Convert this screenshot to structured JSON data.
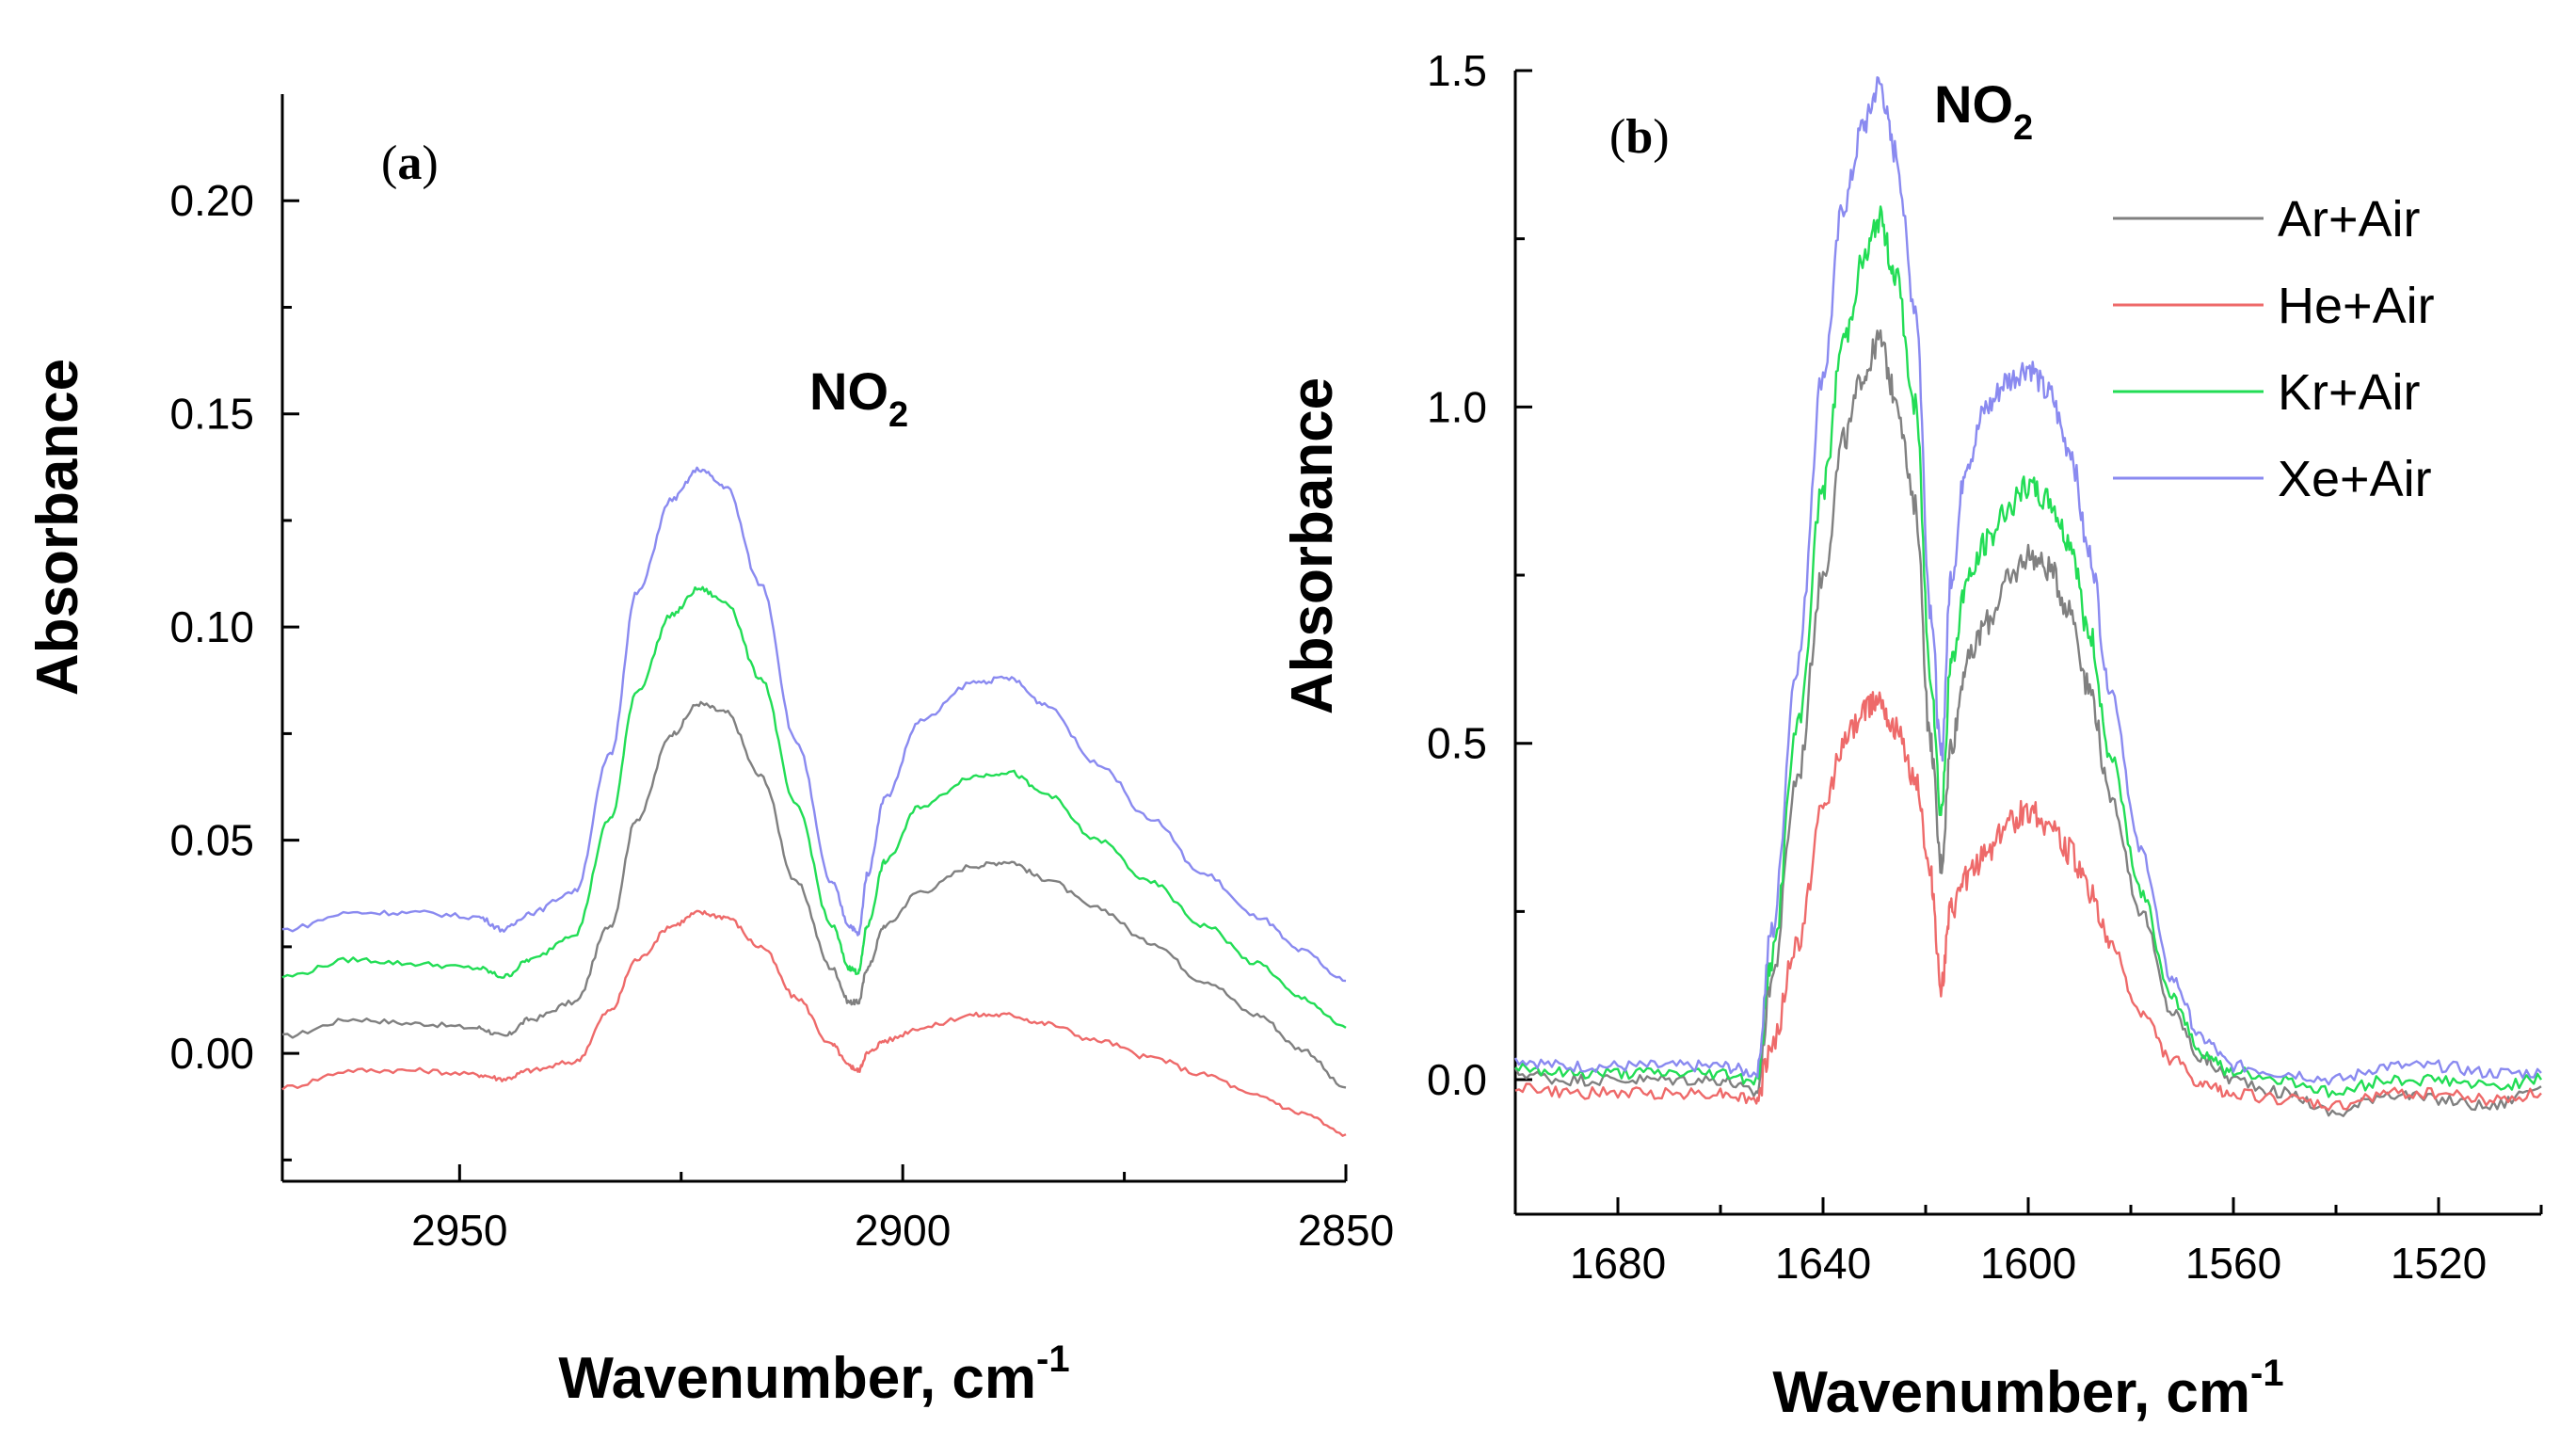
{
  "chart_data": [
    {
      "type": "line",
      "panel_label": "a",
      "annotation": {
        "text": "NO",
        "subscript": "2"
      },
      "xlabel": "Wavenumber, cm",
      "xlabel_superscript": "-1",
      "ylabel": "Absorbance",
      "xlim": [
        2970,
        2850
      ],
      "ylim": [
        -0.03,
        0.225
      ],
      "x_ticks": [
        2950,
        2900,
        2850
      ],
      "x_tick_labels": [
        "2950",
        "2900",
        "2850"
      ],
      "y_ticks": [
        0.0,
        0.05,
        0.1,
        0.15,
        0.2
      ],
      "y_tick_labels": [
        "0.00",
        "0.05",
        "0.10",
        "0.15",
        "0.20"
      ],
      "series": [
        {
          "name": "Ar+Air",
          "color": "#808080",
          "x": [
            2970,
            2962,
            2955,
            2948,
            2945,
            2942,
            2937,
            2933,
            2930,
            2926,
            2923,
            2920,
            2916,
            2912,
            2908,
            2906,
            2905,
            2904,
            2902,
            2898,
            2892,
            2888,
            2884,
            2878,
            2872,
            2866,
            2860,
            2855,
            2850
          ],
          "y": [
            0.004,
            0.008,
            0.007,
            0.006,
            0.004,
            0.008,
            0.012,
            0.03,
            0.055,
            0.075,
            0.082,
            0.08,
            0.065,
            0.04,
            0.02,
            0.012,
            0.012,
            0.02,
            0.03,
            0.038,
            0.044,
            0.045,
            0.041,
            0.034,
            0.026,
            0.017,
            0.009,
            0.001,
            -0.008
          ]
        },
        {
          "name": "He+Air",
          "color": "#ee6a6a",
          "x": [
            2970,
            2962,
            2955,
            2948,
            2945,
            2942,
            2937,
            2933,
            2930,
            2926,
            2923,
            2920,
            2916,
            2912,
            2908,
            2906,
            2905,
            2904,
            2902,
            2898,
            2892,
            2888,
            2884,
            2878,
            2872,
            2866,
            2860,
            2855,
            2850
          ],
          "y": [
            -0.008,
            -0.004,
            -0.004,
            -0.005,
            -0.006,
            -0.004,
            -0.002,
            0.01,
            0.022,
            0.03,
            0.033,
            0.032,
            0.025,
            0.013,
            0.002,
            -0.003,
            -0.004,
            0.0,
            0.003,
            0.006,
            0.009,
            0.009,
            0.007,
            0.003,
            -0.001,
            -0.005,
            -0.01,
            -0.014,
            -0.019
          ]
        },
        {
          "name": "Kr+Air",
          "color": "#22dd55",
          "x": [
            2970,
            2962,
            2955,
            2948,
            2945,
            2942,
            2937,
            2933,
            2930,
            2926,
            2923,
            2920,
            2916,
            2912,
            2908,
            2906,
            2905,
            2904,
            2902,
            2898,
            2892,
            2888,
            2884,
            2878,
            2872,
            2866,
            2860,
            2855,
            2850
          ],
          "y": [
            0.018,
            0.022,
            0.021,
            0.02,
            0.018,
            0.022,
            0.028,
            0.055,
            0.085,
            0.103,
            0.109,
            0.106,
            0.088,
            0.058,
            0.03,
            0.02,
            0.019,
            0.03,
            0.045,
            0.058,
            0.065,
            0.066,
            0.061,
            0.05,
            0.04,
            0.03,
            0.021,
            0.013,
            0.006
          ]
        },
        {
          "name": "Xe+Air",
          "color": "#8a8af0",
          "x": [
            2970,
            2962,
            2955,
            2948,
            2945,
            2942,
            2937,
            2933,
            2930,
            2926,
            2923,
            2920,
            2916,
            2912,
            2908,
            2906,
            2905,
            2904,
            2902,
            2898,
            2892,
            2888,
            2884,
            2878,
            2872,
            2866,
            2860,
            2855,
            2850
          ],
          "y": [
            0.029,
            0.033,
            0.033,
            0.032,
            0.029,
            0.033,
            0.038,
            0.07,
            0.108,
            0.13,
            0.137,
            0.133,
            0.11,
            0.073,
            0.04,
            0.03,
            0.028,
            0.042,
            0.06,
            0.078,
            0.087,
            0.088,
            0.082,
            0.068,
            0.055,
            0.042,
            0.032,
            0.024,
            0.017
          ]
        }
      ]
    },
    {
      "type": "line",
      "panel_label": "b",
      "annotation": {
        "text": "NO",
        "subscript": "2"
      },
      "xlabel": "Wavenumber, cm",
      "xlabel_superscript": "-1",
      "ylabel": "Absorbance",
      "xlim": [
        1700,
        1500
      ],
      "ylim": [
        -0.2,
        1.5
      ],
      "x_ticks": [
        1680,
        1640,
        1600,
        1560,
        1520
      ],
      "x_tick_labels": [
        "1680",
        "1640",
        "1600",
        "1560",
        "1520"
      ],
      "y_ticks": [
        0.0,
        0.5,
        1.0,
        1.5
      ],
      "y_tick_labels": [
        "0.0",
        "0.5",
        "1.0",
        "1.5"
      ],
      "legend": [
        "Ar+Air",
        "He+Air",
        "Kr+Air",
        "Xe+Air"
      ],
      "series": [
        {
          "name": "Ar+Air",
          "color": "#808080",
          "x": [
            1700,
            1690,
            1680,
            1670,
            1660,
            1653,
            1650,
            1645,
            1640,
            1636,
            1632,
            1629,
            1626,
            1622,
            1619,
            1617,
            1615,
            1612,
            1608,
            1604,
            1600,
            1596,
            1592,
            1588,
            1584,
            1578,
            1572,
            1566,
            1560,
            1550,
            1540,
            1530,
            1520,
            1510,
            1500
          ],
          "y": [
            0.01,
            0.0,
            0.0,
            0.0,
            0.0,
            -0.02,
            0.15,
            0.45,
            0.75,
            0.95,
            1.05,
            1.1,
            1.02,
            0.85,
            0.5,
            0.32,
            0.5,
            0.62,
            0.68,
            0.74,
            0.78,
            0.76,
            0.7,
            0.58,
            0.42,
            0.25,
            0.1,
            0.03,
            0.0,
            -0.02,
            -0.05,
            -0.02,
            -0.03,
            -0.04,
            -0.01
          ]
        },
        {
          "name": "He+Air",
          "color": "#ee6a6a",
          "x": [
            1700,
            1690,
            1680,
            1670,
            1660,
            1653,
            1650,
            1645,
            1640,
            1636,
            1632,
            1629,
            1626,
            1622,
            1619,
            1617,
            1615,
            1612,
            1608,
            1604,
            1600,
            1596,
            1592,
            1588,
            1584,
            1578,
            1572,
            1566,
            1560,
            1550,
            1540,
            1530,
            1520,
            1510,
            1500
          ],
          "y": [
            -0.01,
            -0.02,
            -0.02,
            -0.02,
            -0.02,
            -0.03,
            0.05,
            0.2,
            0.4,
            0.5,
            0.55,
            0.57,
            0.52,
            0.45,
            0.3,
            0.14,
            0.25,
            0.3,
            0.34,
            0.38,
            0.4,
            0.38,
            0.34,
            0.28,
            0.2,
            0.1,
            0.03,
            -0.01,
            -0.02,
            -0.03,
            -0.04,
            -0.02,
            -0.02,
            -0.03,
            -0.02
          ]
        },
        {
          "name": "Kr+Air",
          "color": "#22dd55",
          "x": [
            1700,
            1690,
            1680,
            1670,
            1660,
            1653,
            1650,
            1645,
            1640,
            1636,
            1632,
            1629,
            1626,
            1622,
            1619,
            1617,
            1615,
            1612,
            1608,
            1604,
            1600,
            1596,
            1592,
            1588,
            1584,
            1578,
            1572,
            1566,
            1560,
            1550,
            1540,
            1530,
            1520,
            1510,
            1500
          ],
          "y": [
            0.02,
            0.01,
            0.01,
            0.01,
            0.01,
            0.0,
            0.18,
            0.52,
            0.88,
            1.1,
            1.22,
            1.28,
            1.2,
            1.0,
            0.6,
            0.4,
            0.62,
            0.74,
            0.8,
            0.85,
            0.88,
            0.86,
            0.8,
            0.66,
            0.48,
            0.28,
            0.12,
            0.04,
            0.01,
            0.0,
            -0.02,
            0.0,
            0.0,
            -0.01,
            0.0
          ]
        },
        {
          "name": "Xe+Air",
          "color": "#8a8af0",
          "x": [
            1700,
            1690,
            1680,
            1670,
            1660,
            1653,
            1650,
            1645,
            1640,
            1636,
            1632,
            1629,
            1626,
            1622,
            1619,
            1617,
            1615,
            1612,
            1608,
            1604,
            1600,
            1596,
            1592,
            1588,
            1584,
            1578,
            1572,
            1566,
            1560,
            1550,
            1540,
            1530,
            1520,
            1510,
            1500
          ],
          "y": [
            0.03,
            0.02,
            0.02,
            0.02,
            0.02,
            0.01,
            0.22,
            0.62,
            1.05,
            1.3,
            1.42,
            1.48,
            1.38,
            1.15,
            0.7,
            0.48,
            0.75,
            0.92,
            1.0,
            1.04,
            1.06,
            1.02,
            0.94,
            0.78,
            0.58,
            0.34,
            0.15,
            0.06,
            0.02,
            0.01,
            0.0,
            0.02,
            0.02,
            0.01,
            0.01
          ]
        }
      ]
    }
  ]
}
